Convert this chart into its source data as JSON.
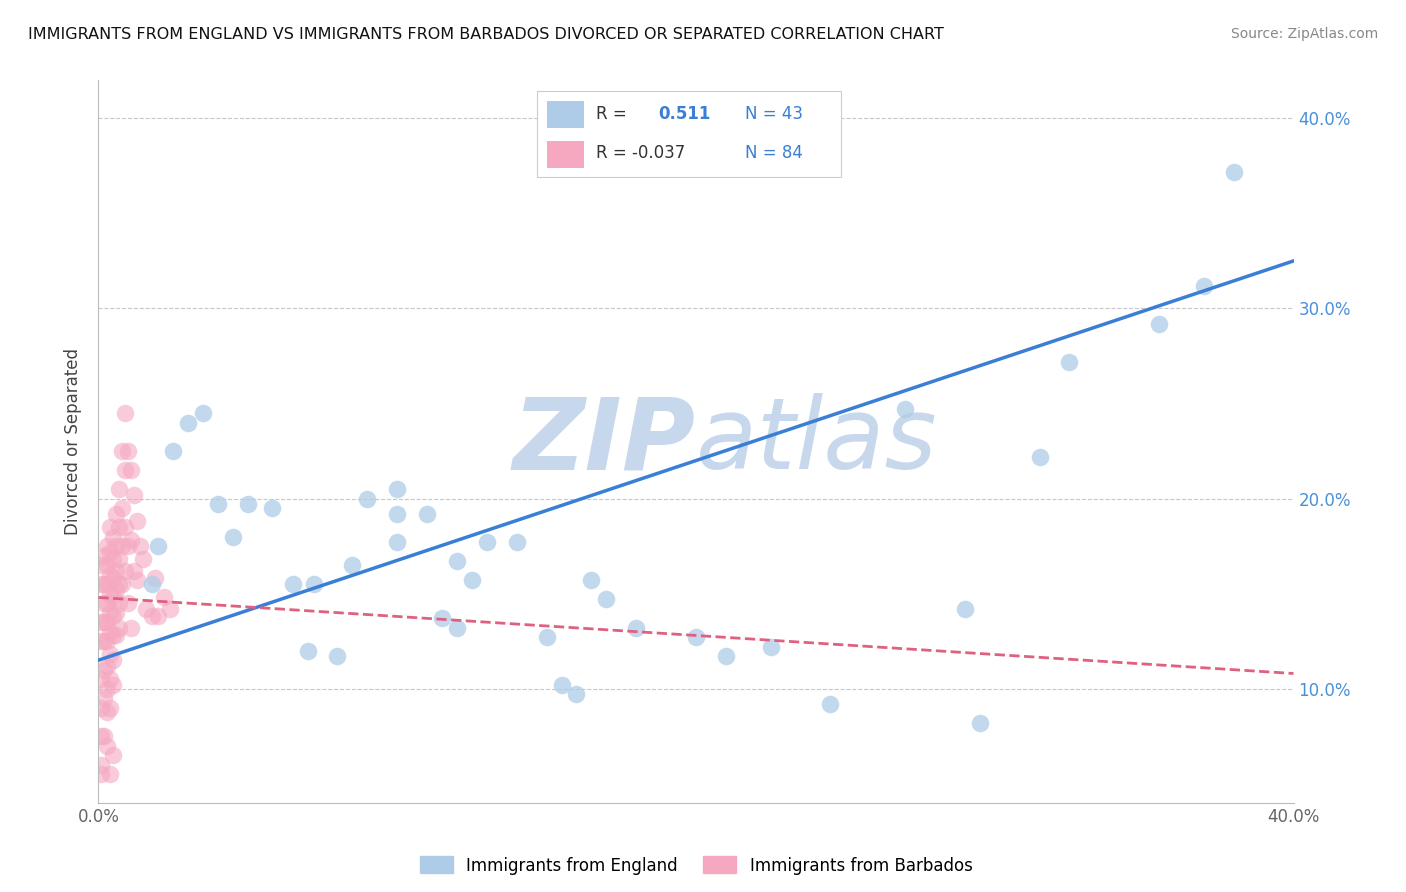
{
  "title": "IMMIGRANTS FROM ENGLAND VS IMMIGRANTS FROM BARBADOS DIVORCED OR SEPARATED CORRELATION CHART",
  "source": "Source: ZipAtlas.com",
  "ylabel": "Divorced or Separated",
  "xlim": [
    0.0,
    0.4
  ],
  "ylim": [
    0.04,
    0.42
  ],
  "legend_england_r": "R =",
  "legend_england_rv": "0.511",
  "legend_england_n": "N = 43",
  "legend_barbados_r": "R = -0.037",
  "legend_barbados_n": "N = 84",
  "england_color": "#aecce8",
  "barbados_color": "#f5a8c0",
  "england_line_color": "#3a7fd5",
  "barbados_line_color": "#e06080",
  "watermark_color": "#c8d8ec",
  "background_color": "#ffffff",
  "grid_color": "#c8c8c8",
  "england_trendline_x": [
    0.0,
    0.4
  ],
  "england_trendline_y": [
    0.115,
    0.325
  ],
  "barbados_trendline_x": [
    0.0,
    0.4
  ],
  "barbados_trendline_y": [
    0.148,
    0.108
  ],
  "england_scatter": [
    [
      0.018,
      0.155
    ],
    [
      0.02,
      0.175
    ],
    [
      0.025,
      0.225
    ],
    [
      0.03,
      0.24
    ],
    [
      0.035,
      0.245
    ],
    [
      0.04,
      0.197
    ],
    [
      0.045,
      0.18
    ],
    [
      0.05,
      0.197
    ],
    [
      0.058,
      0.195
    ],
    [
      0.065,
      0.155
    ],
    [
      0.07,
      0.12
    ],
    [
      0.072,
      0.155
    ],
    [
      0.08,
      0.117
    ],
    [
      0.085,
      0.165
    ],
    [
      0.09,
      0.2
    ],
    [
      0.1,
      0.177
    ],
    [
      0.1,
      0.205
    ],
    [
      0.1,
      0.192
    ],
    [
      0.11,
      0.192
    ],
    [
      0.115,
      0.137
    ],
    [
      0.12,
      0.132
    ],
    [
      0.12,
      0.167
    ],
    [
      0.125,
      0.157
    ],
    [
      0.13,
      0.177
    ],
    [
      0.14,
      0.177
    ],
    [
      0.15,
      0.127
    ],
    [
      0.155,
      0.102
    ],
    [
      0.16,
      0.097
    ],
    [
      0.165,
      0.157
    ],
    [
      0.17,
      0.147
    ],
    [
      0.18,
      0.132
    ],
    [
      0.2,
      0.127
    ],
    [
      0.21,
      0.117
    ],
    [
      0.225,
      0.122
    ],
    [
      0.245,
      0.092
    ],
    [
      0.27,
      0.247
    ],
    [
      0.29,
      0.142
    ],
    [
      0.295,
      0.082
    ],
    [
      0.315,
      0.222
    ],
    [
      0.325,
      0.272
    ],
    [
      0.355,
      0.292
    ],
    [
      0.37,
      0.312
    ],
    [
      0.38,
      0.372
    ]
  ],
  "barbados_scatter": [
    [
      0.001,
      0.165
    ],
    [
      0.001,
      0.135
    ],
    [
      0.001,
      0.155
    ],
    [
      0.001,
      0.125
    ],
    [
      0.001,
      0.105
    ],
    [
      0.001,
      0.09
    ],
    [
      0.001,
      0.075
    ],
    [
      0.001,
      0.06
    ],
    [
      0.002,
      0.17
    ],
    [
      0.002,
      0.155
    ],
    [
      0.002,
      0.145
    ],
    [
      0.002,
      0.135
    ],
    [
      0.002,
      0.125
    ],
    [
      0.002,
      0.11
    ],
    [
      0.002,
      0.095
    ],
    [
      0.002,
      0.075
    ],
    [
      0.003,
      0.175
    ],
    [
      0.003,
      0.165
    ],
    [
      0.003,
      0.155
    ],
    [
      0.003,
      0.145
    ],
    [
      0.003,
      0.135
    ],
    [
      0.003,
      0.125
    ],
    [
      0.003,
      0.112
    ],
    [
      0.003,
      0.1
    ],
    [
      0.003,
      0.088
    ],
    [
      0.004,
      0.185
    ],
    [
      0.004,
      0.172
    ],
    [
      0.004,
      0.16
    ],
    [
      0.004,
      0.15
    ],
    [
      0.004,
      0.14
    ],
    [
      0.004,
      0.13
    ],
    [
      0.004,
      0.118
    ],
    [
      0.004,
      0.105
    ],
    [
      0.004,
      0.09
    ],
    [
      0.005,
      0.18
    ],
    [
      0.005,
      0.168
    ],
    [
      0.005,
      0.158
    ],
    [
      0.005,
      0.148
    ],
    [
      0.005,
      0.138
    ],
    [
      0.005,
      0.128
    ],
    [
      0.005,
      0.115
    ],
    [
      0.005,
      0.102
    ],
    [
      0.006,
      0.192
    ],
    [
      0.006,
      0.175
    ],
    [
      0.006,
      0.162
    ],
    [
      0.006,
      0.152
    ],
    [
      0.006,
      0.14
    ],
    [
      0.006,
      0.128
    ],
    [
      0.007,
      0.205
    ],
    [
      0.007,
      0.185
    ],
    [
      0.007,
      0.168
    ],
    [
      0.007,
      0.155
    ],
    [
      0.007,
      0.145
    ],
    [
      0.007,
      0.132
    ],
    [
      0.008,
      0.225
    ],
    [
      0.008,
      0.195
    ],
    [
      0.008,
      0.175
    ],
    [
      0.008,
      0.155
    ],
    [
      0.009,
      0.245
    ],
    [
      0.009,
      0.215
    ],
    [
      0.009,
      0.185
    ],
    [
      0.009,
      0.162
    ],
    [
      0.01,
      0.225
    ],
    [
      0.01,
      0.175
    ],
    [
      0.01,
      0.145
    ],
    [
      0.011,
      0.215
    ],
    [
      0.011,
      0.178
    ],
    [
      0.011,
      0.132
    ],
    [
      0.012,
      0.202
    ],
    [
      0.012,
      0.162
    ],
    [
      0.013,
      0.188
    ],
    [
      0.013,
      0.157
    ],
    [
      0.014,
      0.175
    ],
    [
      0.015,
      0.168
    ],
    [
      0.016,
      0.142
    ],
    [
      0.018,
      0.138
    ],
    [
      0.019,
      0.158
    ],
    [
      0.02,
      0.138
    ],
    [
      0.022,
      0.148
    ],
    [
      0.024,
      0.142
    ],
    [
      0.005,
      0.065
    ],
    [
      0.003,
      0.07
    ],
    [
      0.001,
      0.055
    ],
    [
      0.004,
      0.055
    ]
  ]
}
